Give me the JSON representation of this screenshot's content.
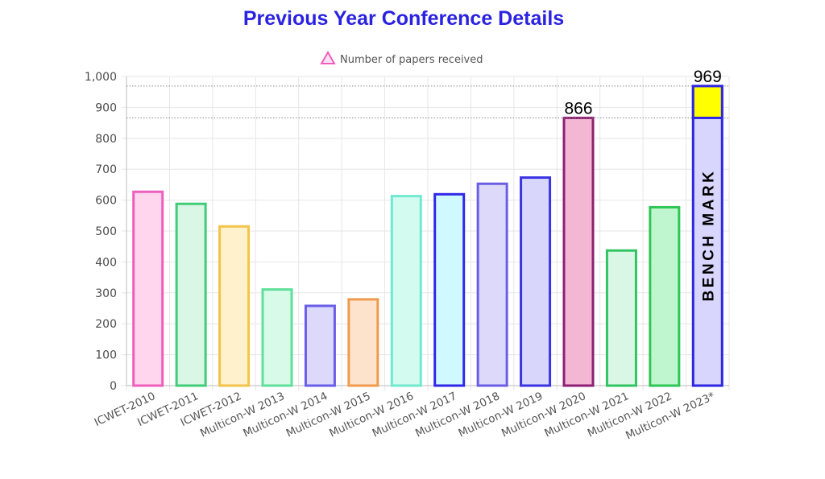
{
  "chart_data": {
    "type": "bar",
    "title": "Previous Year Conference Details",
    "legend": {
      "label": "Number of papers received",
      "placement": "top-center",
      "symbol": "triangle-outline"
    },
    "categories": [
      "ICWET-2010",
      "ICWET-2011",
      "ICWET-2012",
      "Multicon-W 2013",
      "Multicon-W 2014",
      "Multicon-W 2015",
      "Multicon-W 2016",
      "Multicon-W 2017",
      "Multicon-W 2018",
      "Multicon-W 2019",
      "Multicon-W 2020",
      "Multicon-W 2021",
      "Multicon-W 2022",
      "Multicon-W 2023*"
    ],
    "series": [
      {
        "name": "Number of papers received",
        "values": [
          627,
          588,
          515,
          311,
          258,
          279,
          613,
          619,
          653,
          673,
          866,
          437,
          577,
          969
        ]
      }
    ],
    "bar_styles": [
      {
        "fill": "#ffd6ee",
        "stroke": "#ee5fbc"
      },
      {
        "fill": "#d9f7e4",
        "stroke": "#3fcc77"
      },
      {
        "fill": "#fff1cc",
        "stroke": "#f3c34a"
      },
      {
        "fill": "#d8fae8",
        "stroke": "#5ee09a"
      },
      {
        "fill": "#dcd9fb",
        "stroke": "#6a5ee8"
      },
      {
        "fill": "#fde2cc",
        "stroke": "#f09a4e"
      },
      {
        "fill": "#d4fbf0",
        "stroke": "#6fe9d0"
      },
      {
        "fill": "#cff8ff",
        "stroke": "#2f27e8"
      },
      {
        "fill": "#dcd9fb",
        "stroke": "#6b5ee6"
      },
      {
        "fill": "#d8d7fb",
        "stroke": "#3a33e4"
      },
      {
        "fill": "#f4b7d3",
        "stroke": "#8e1f73"
      },
      {
        "fill": "#d9f7e4",
        "stroke": "#32c463"
      },
      {
        "fill": "#bff6cf",
        "stroke": "#2ec554"
      },
      {
        "fill": "#d8d6fc",
        "stroke": "#2e27e2"
      }
    ],
    "ylim": [
      0,
      1000
    ],
    "yticks": [
      "0",
      "100",
      "200",
      "300",
      "400",
      "500",
      "600",
      "700",
      "800",
      "900",
      "1,000"
    ],
    "ytick_values": [
      0,
      100,
      200,
      300,
      400,
      500,
      600,
      700,
      800,
      900,
      1000
    ],
    "grid": true,
    "annotations": {
      "value_labels": [
        {
          "text": "866",
          "value": 866,
          "category": "Multicon-W 2020"
        },
        {
          "text": "969",
          "value": 969,
          "category": "Multicon-W 2023*"
        }
      ],
      "reference_lines": [
        866,
        969
      ],
      "highlight": {
        "category": "Multicon-W 2023*",
        "from": 866,
        "to": 969,
        "color": "#ffff00"
      },
      "bench_label": {
        "text": "BENCH MARK",
        "category": "Multicon-W 2023*"
      }
    },
    "colors": {
      "title": "#2a22e0",
      "grid": "#e6e6e6",
      "axis": "#c8c8c8",
      "legend_symbol": "#ee5fbc",
      "reference_line": "#888888"
    }
  }
}
